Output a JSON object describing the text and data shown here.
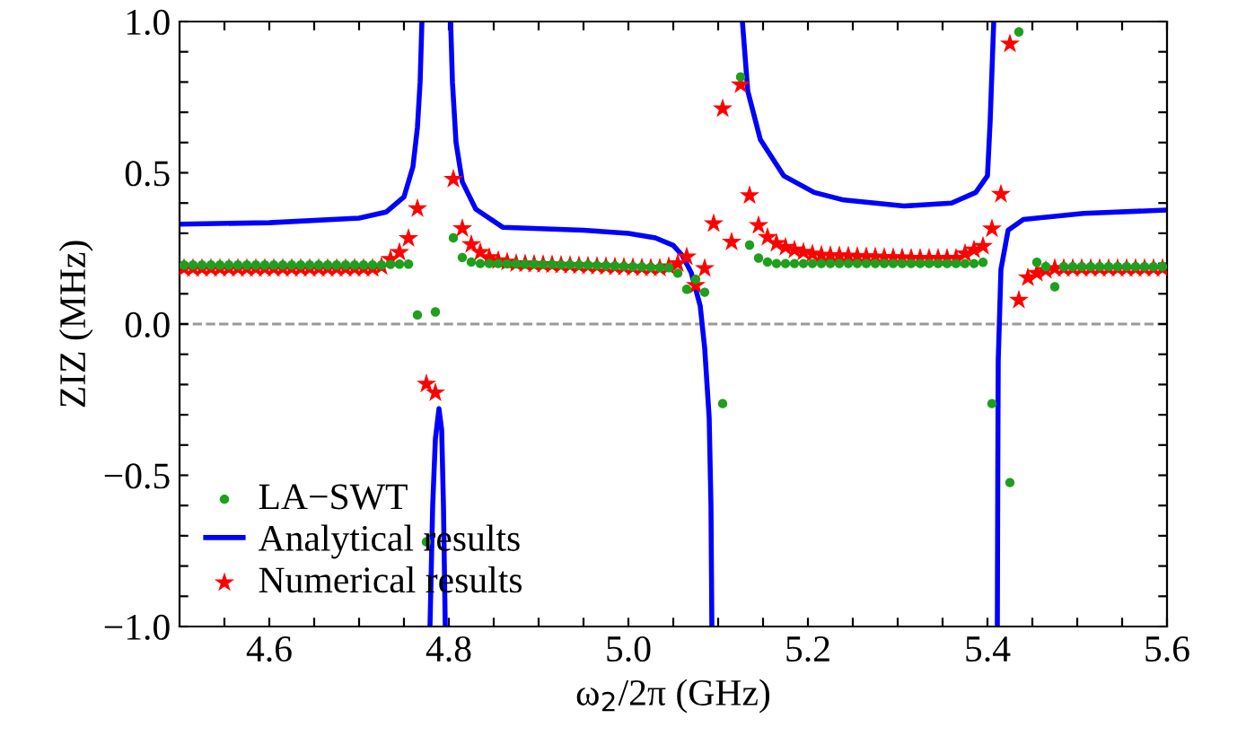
{
  "chart_data": {
    "type": "scatter",
    "xlabel": "ω$_{2}$/2π (GHz)",
    "ylabel": "ZIZ (MHz)",
    "xlim": [
      4.5,
      5.6
    ],
    "ylim": [
      -1.0,
      1.0
    ],
    "xticks": [
      {
        "value": 4.55,
        "label": null
      },
      {
        "value": 4.6,
        "label": "4.6"
      },
      {
        "value": 4.65,
        "label": null
      },
      {
        "value": 4.7,
        "label": null
      },
      {
        "value": 4.75,
        "label": null
      },
      {
        "value": 4.8,
        "label": "4.8"
      },
      {
        "value": 4.85,
        "label": null
      },
      {
        "value": 4.9,
        "label": null
      },
      {
        "value": 4.95,
        "label": null
      },
      {
        "value": 5.0,
        "label": "5.0"
      },
      {
        "value": 5.05,
        "label": null
      },
      {
        "value": 5.1,
        "label": null
      },
      {
        "value": 5.15,
        "label": null
      },
      {
        "value": 5.2,
        "label": "5.2"
      },
      {
        "value": 5.25,
        "label": null
      },
      {
        "value": 5.3,
        "label": null
      },
      {
        "value": 5.35,
        "label": null
      },
      {
        "value": 5.4,
        "label": "5.4"
      },
      {
        "value": 5.45,
        "label": null
      },
      {
        "value": 5.5,
        "label": null
      },
      {
        "value": 5.55,
        "label": null
      },
      {
        "value": 5.6,
        "label": "5.6"
      }
    ],
    "yticks": [
      {
        "value": -1.0,
        "label": "−1.0"
      },
      {
        "value": -0.9,
        "label": null
      },
      {
        "value": -0.8,
        "label": null
      },
      {
        "value": -0.7,
        "label": null
      },
      {
        "value": -0.6,
        "label": null
      },
      {
        "value": -0.5,
        "label": "−0.5"
      },
      {
        "value": -0.4,
        "label": null
      },
      {
        "value": -0.3,
        "label": null
      },
      {
        "value": -0.2,
        "label": null
      },
      {
        "value": -0.1,
        "label": null
      },
      {
        "value": 0.0,
        "label": "0.0"
      },
      {
        "value": 0.1,
        "label": null
      },
      {
        "value": 0.2,
        "label": null
      },
      {
        "value": 0.3,
        "label": null
      },
      {
        "value": 0.4,
        "label": null
      },
      {
        "value": 0.5,
        "label": "0.5"
      },
      {
        "value": 0.6,
        "label": null
      },
      {
        "value": 0.7,
        "label": null
      },
      {
        "value": 0.8,
        "label": null
      },
      {
        "value": 0.9,
        "label": null
      },
      {
        "value": 1.0,
        "label": "1.0"
      }
    ],
    "x": [
      4.505,
      4.515,
      4.525,
      4.535,
      4.545,
      4.555,
      4.565,
      4.575,
      4.585,
      4.595,
      4.605,
      4.615,
      4.625,
      4.635,
      4.645,
      4.655,
      4.665,
      4.675,
      4.685,
      4.695,
      4.705,
      4.715,
      4.725,
      4.735,
      4.745,
      4.755,
      4.765,
      4.775,
      4.785,
      4.795,
      4.805,
      4.815,
      4.825,
      4.835,
      4.845,
      4.855,
      4.865,
      4.875,
      4.885,
      4.895,
      4.905,
      4.915,
      4.925,
      4.935,
      4.945,
      4.955,
      4.965,
      4.975,
      4.985,
      4.995,
      5.005,
      5.015,
      5.025,
      5.035,
      5.045,
      5.055,
      5.065,
      5.075,
      5.085,
      5.095,
      5.105,
      5.115,
      5.125,
      5.135,
      5.145,
      5.155,
      5.165,
      5.175,
      5.185,
      5.195,
      5.205,
      5.215,
      5.225,
      5.235,
      5.245,
      5.255,
      5.265,
      5.275,
      5.285,
      5.295,
      5.305,
      5.315,
      5.325,
      5.335,
      5.345,
      5.355,
      5.365,
      5.375,
      5.385,
      5.395,
      5.405,
      5.415,
      5.425,
      5.435,
      5.445,
      5.455,
      5.465,
      5.475,
      5.485,
      5.495,
      5.505,
      5.515,
      5.525,
      5.535,
      5.545,
      5.555,
      5.565,
      5.575,
      5.585,
      5.595
    ],
    "series": [
      {
        "name": "LA−SWT",
        "marker": "circle",
        "color": "#1ea01e",
        "values": [
          0.195,
          0.195,
          0.195,
          0.195,
          0.195,
          0.195,
          0.195,
          0.195,
          0.195,
          0.195,
          0.195,
          0.195,
          0.195,
          0.195,
          0.195,
          0.195,
          0.195,
          0.195,
          0.195,
          0.195,
          0.195,
          0.195,
          0.195,
          0.197,
          0.198,
          0.198,
          0.03,
          -0.72,
          0.04,
          null,
          0.285,
          0.22,
          0.205,
          0.2,
          0.2,
          0.2,
          0.199,
          0.199,
          0.198,
          0.198,
          0.197,
          0.197,
          0.196,
          0.196,
          0.195,
          0.195,
          0.194,
          0.193,
          0.192,
          0.191,
          0.19,
          0.189,
          0.188,
          0.187,
          0.186,
          0.168,
          0.115,
          0.148,
          0.105,
          null,
          -0.263,
          null,
          0.817,
          0.261,
          0.218,
          0.205,
          0.2,
          0.2,
          0.2,
          0.2,
          0.2,
          0.2,
          0.2,
          0.2,
          0.2,
          0.2,
          0.2,
          0.2,
          0.2,
          0.2,
          0.2,
          0.2,
          0.2,
          0.2,
          0.2,
          0.2,
          0.2,
          0.2,
          0.2,
          0.204,
          -0.263,
          null,
          -0.524,
          0.966,
          null,
          0.204,
          0.19,
          0.123,
          0.19,
          0.19,
          0.19,
          0.19,
          0.19,
          0.19,
          0.19,
          0.19,
          0.19,
          0.19,
          0.19,
          0.19
        ]
      },
      {
        "name": "Analytical results",
        "type": "line",
        "line_style": "solid",
        "marker": "none",
        "color": "#0000ff",
        "x": [
          4.5,
          4.6,
          4.7,
          4.73,
          4.75,
          4.76,
          4.765,
          4.768,
          4.77,
          4.7705,
          4.779,
          4.782,
          4.785,
          4.789,
          4.792,
          4.794,
          4.796,
          4.799,
          4.802,
          4.804,
          4.808,
          4.815,
          4.83,
          4.86,
          4.95,
          5.0,
          5.03,
          5.05,
          5.06,
          5.07,
          5.08,
          5.085,
          5.09,
          5.092,
          5.093,
          5.11,
          5.127,
          5.133,
          5.147,
          5.173,
          5.207,
          5.24,
          5.307,
          5.36,
          5.387,
          5.4,
          5.403,
          5.407,
          5.409,
          5.411,
          5.4115,
          5.412,
          5.415,
          5.423,
          5.44,
          5.507,
          5.593,
          5.6
        ],
        "values": [
          0.33,
          0.335,
          0.35,
          0.37,
          0.42,
          0.52,
          0.65,
          0.8,
          1.0,
          null,
          -1.0,
          -0.6,
          -0.38,
          -0.28,
          -0.35,
          -0.6,
          -1.0,
          null,
          1.0,
          0.8,
          0.6,
          0.47,
          0.38,
          0.32,
          0.31,
          0.3,
          0.285,
          0.26,
          0.227,
          0.17,
          0.06,
          -0.08,
          -0.31,
          -0.6,
          -1.0,
          null,
          1.0,
          0.77,
          0.61,
          0.49,
          0.435,
          0.41,
          0.39,
          0.4,
          0.435,
          0.49,
          0.67,
          1.0,
          null,
          -1.0,
          -0.5,
          -0.12,
          0.18,
          0.31,
          0.346,
          0.366,
          0.376,
          0.377
        ]
      },
      {
        "name": "Numerical results",
        "marker": "star",
        "color": "#ff0000",
        "values": [
          0.184,
          0.184,
          0.184,
          0.184,
          0.184,
          0.184,
          0.184,
          0.184,
          0.184,
          0.184,
          0.184,
          0.184,
          0.184,
          0.184,
          0.184,
          0.184,
          0.184,
          0.184,
          0.184,
          0.184,
          0.184,
          0.184,
          0.19,
          0.214,
          0.237,
          0.283,
          0.382,
          -0.198,
          -0.227,
          null,
          0.479,
          0.316,
          0.263,
          0.237,
          0.22,
          0.21,
          0.205,
          0.2,
          0.199,
          0.198,
          0.197,
          0.196,
          0.195,
          0.194,
          0.193,
          0.192,
          0.191,
          0.19,
          0.189,
          0.188,
          0.187,
          0.186,
          0.185,
          0.185,
          0.19,
          0.2,
          0.222,
          0.128,
          0.184,
          0.332,
          0.712,
          0.271,
          0.791,
          0.425,
          0.326,
          0.287,
          0.267,
          0.254,
          0.245,
          0.238,
          0.232,
          0.228,
          0.227,
          0.226,
          0.225,
          0.224,
          0.223,
          0.222,
          0.221,
          0.22,
          0.219,
          0.218,
          0.218,
          0.218,
          0.218,
          0.218,
          0.218,
          0.233,
          0.245,
          0.257,
          0.315,
          0.429,
          0.926,
          0.079,
          0.153,
          0.168,
          0.178,
          0.184,
          0.184,
          0.184,
          0.184,
          0.184,
          0.184,
          0.184,
          0.184,
          0.184,
          0.184,
          0.184,
          0.184,
          0.184
        ]
      }
    ],
    "ref_lines": [
      {
        "axis": "y",
        "value": 0,
        "color": "#999999",
        "line_style": "dashed"
      }
    ],
    "legend": "bottom left",
    "grid": false
  }
}
